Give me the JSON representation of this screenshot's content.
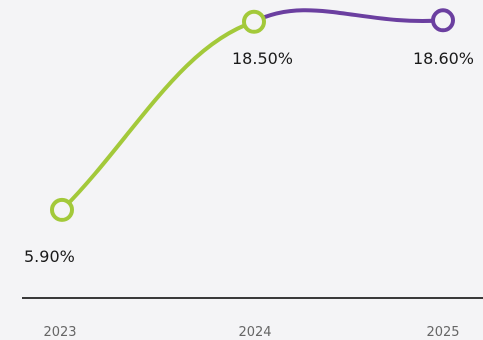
{
  "chart_data": {
    "type": "line",
    "x": [
      "2023",
      "2024",
      "2025"
    ],
    "values": [
      5.9,
      18.5,
      18.6
    ],
    "data_labels": [
      "5.90%",
      "18.50%",
      "18.60%"
    ],
    "ylim": [
      0,
      20
    ],
    "grid": false,
    "legend": "none",
    "colors": {
      "actual": "#a3c93a",
      "forecast": "#6b3fa0",
      "axis": "#3a3a3a",
      "background": "#f4f4f6"
    }
  }
}
